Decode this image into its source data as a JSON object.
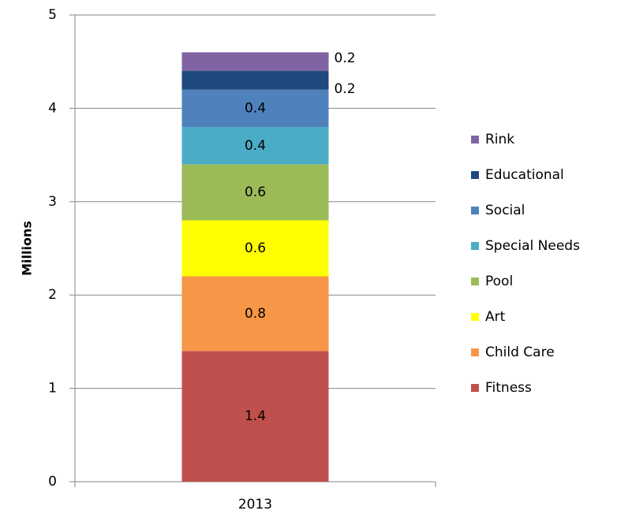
{
  "chart_data": {
    "type": "stacked_bar",
    "categories": [
      "2013"
    ],
    "y_label": "Millions",
    "series": [
      {
        "name": "Fitness",
        "color": "#c0504d",
        "values": [
          1.4
        ]
      },
      {
        "name": "Child Care",
        "color": "#f79646",
        "values": [
          0.8
        ]
      },
      {
        "name": "Art",
        "color": "#ffff00",
        "values": [
          0.6
        ]
      },
      {
        "name": "Pool",
        "color": "#9bbb59",
        "values": [
          0.6
        ]
      },
      {
        "name": "Special Needs",
        "color": "#4bacc6",
        "values": [
          0.4
        ]
      },
      {
        "name": "Social",
        "color": "#4f81bd",
        "values": [
          0.4
        ]
      },
      {
        "name": "Educational",
        "color": "#1f497d",
        "values": [
          0.2
        ]
      },
      {
        "name": "Rink",
        "color": "#8064a2",
        "values": [
          0.2
        ]
      }
    ],
    "ylim": [
      0,
      5
    ],
    "yticks": [
      0,
      1,
      2,
      3,
      4,
      5
    ],
    "grid": true,
    "legend": "right"
  }
}
